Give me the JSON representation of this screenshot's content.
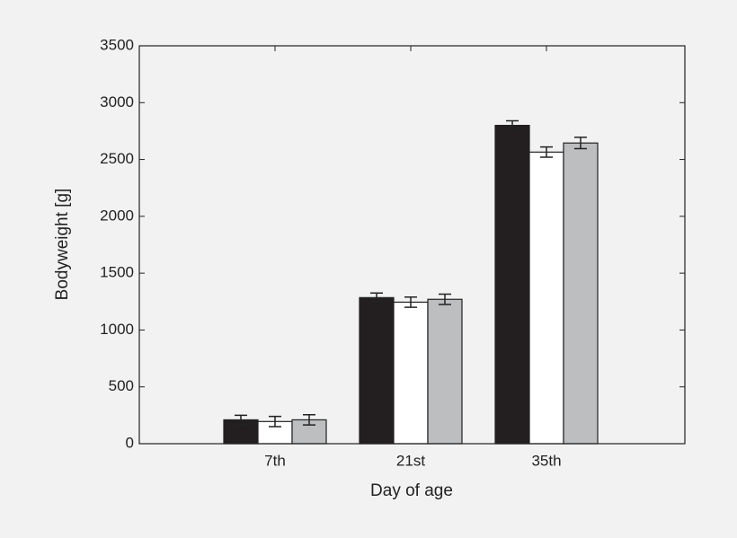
{
  "chart_data": {
    "type": "bar",
    "x_label": "Day of age",
    "y_label": "Bodyweight [g]",
    "categories": [
      "7th",
      "21st",
      "35th"
    ],
    "series": [
      {
        "color": "#231f20",
        "values": [
          210,
          1285,
          2800
        ],
        "errors": [
          40,
          40,
          40
        ]
      },
      {
        "color": "#ffffff",
        "values": [
          195,
          1245,
          2565
        ],
        "errors": [
          45,
          45,
          45
        ]
      },
      {
        "color": "#bcbec0",
        "values": [
          210,
          1270,
          2645
        ],
        "errors": [
          45,
          45,
          50
        ]
      }
    ],
    "ylim": [
      0,
      3500
    ],
    "yticks": [
      0,
      500,
      1000,
      1500,
      2000,
      2500,
      3000,
      3500
    ]
  }
}
